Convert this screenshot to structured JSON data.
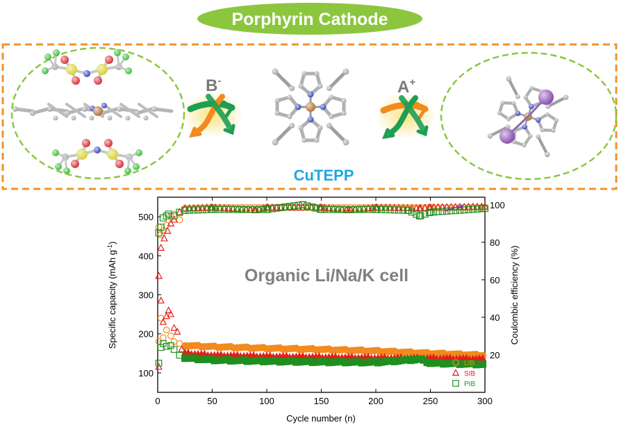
{
  "header": {
    "title": "Porphyrin Cathode",
    "title_bg": "#8cc63f"
  },
  "scheme": {
    "anion_label": "B",
    "anion_sup": "-",
    "cation_label": "A",
    "cation_sup": "+",
    "molecule_label": "CuTEPP",
    "molecule_label_color": "#1ea7e1",
    "frame_color": "#f2922b",
    "ellipse_color": "#8cc63f",
    "arrow_colors": {
      "orange": "#f28a1e",
      "green": "#1e9e55",
      "glow": "#f7e27a"
    },
    "atom_colors": {
      "carbon": "#a8a8a8",
      "nitrogen": "#3b4bbf",
      "copper": "#b3743a",
      "sulfur": "#d8d23a",
      "fluorine": "#3fbf3f",
      "oxygen": "#d8333a",
      "potassium": "#8a4fb0"
    }
  },
  "chart_data": {
    "type": "scatter",
    "annotation": "Organic Li/Na/K cell",
    "xlabel": "Cycle number (n)",
    "ylabel": "Specific capacity (mAh g",
    "ylabel_sup": "-1",
    "ylabel_end": ")",
    "y2label": "Coulombic efficiency (%)",
    "xlim": [
      0,
      300
    ],
    "ylim": [
      50,
      550
    ],
    "y2lim": [
      0,
      104
    ],
    "xticks": [
      0,
      50,
      100,
      150,
      200,
      250,
      300
    ],
    "yticks": [
      100,
      200,
      300,
      400,
      500
    ],
    "y2ticks": [
      20,
      40,
      60,
      80,
      100
    ],
    "legend_position": "bottom-right",
    "series": [
      {
        "name": "LIB",
        "marker": "circle",
        "color": "#f28a1e",
        "capacity": [
          [
            1,
            180
          ],
          [
            3,
            240
          ],
          [
            5,
            190
          ],
          [
            8,
            210
          ],
          [
            12,
            195
          ],
          [
            15,
            180
          ],
          [
            20,
            175
          ],
          [
            25,
            170
          ],
          [
            50,
            167
          ],
          [
            100,
            163
          ],
          [
            150,
            160
          ],
          [
            200,
            156
          ],
          [
            250,
            150
          ],
          [
            300,
            145
          ]
        ],
        "efficiency": [
          [
            1,
            88
          ],
          [
            3,
            84
          ],
          [
            5,
            86
          ],
          [
            8,
            89
          ],
          [
            12,
            94
          ],
          [
            15,
            95
          ],
          [
            20,
            92
          ],
          [
            25,
            98
          ],
          [
            50,
            98.5
          ],
          [
            100,
            98.5
          ],
          [
            150,
            98.5
          ],
          [
            200,
            98.5
          ],
          [
            250,
            98.5
          ],
          [
            300,
            98.5
          ]
        ]
      },
      {
        "name": "SIB",
        "marker": "triangle",
        "color": "#e0201b",
        "capacity": [
          [
            1,
            115
          ],
          [
            3,
            285
          ],
          [
            5,
            230
          ],
          [
            8,
            245
          ],
          [
            10,
            260
          ],
          [
            12,
            250
          ],
          [
            15,
            215
          ],
          [
            18,
            205
          ],
          [
            22,
            160
          ],
          [
            25,
            150
          ],
          [
            50,
            145
          ],
          [
            100,
            142
          ],
          [
            150,
            140
          ],
          [
            200,
            138
          ],
          [
            250,
            137
          ],
          [
            300,
            135
          ]
        ],
        "efficiency": [
          [
            1,
            62
          ],
          [
            3,
            77
          ],
          [
            6,
            82
          ],
          [
            9,
            86
          ],
          [
            12,
            90
          ],
          [
            15,
            92
          ],
          [
            20,
            96
          ],
          [
            25,
            98
          ],
          [
            50,
            98.5
          ],
          [
            90,
            97
          ],
          [
            100,
            98.5
          ],
          [
            150,
            98.5
          ],
          [
            175,
            97
          ],
          [
            200,
            98.5
          ],
          [
            240,
            98
          ],
          [
            250,
            98.5
          ],
          [
            300,
            99
          ]
        ]
      },
      {
        "name": "PIB",
        "marker": "square",
        "color": "#1f8f1f",
        "capacity": [
          [
            1,
            125
          ],
          [
            3,
            165
          ],
          [
            5,
            175
          ],
          [
            8,
            168
          ],
          [
            12,
            170
          ],
          [
            15,
            160
          ],
          [
            20,
            145
          ],
          [
            25,
            138
          ],
          [
            50,
            133
          ],
          [
            100,
            130
          ],
          [
            150,
            128
          ],
          [
            200,
            127
          ],
          [
            240,
            135
          ],
          [
            250,
            125
          ],
          [
            300,
            122
          ]
        ],
        "efficiency": [
          [
            1,
            85
          ],
          [
            3,
            88
          ],
          [
            5,
            93
          ],
          [
            8,
            94
          ],
          [
            10,
            95
          ],
          [
            15,
            94
          ],
          [
            20,
            96
          ],
          [
            25,
            97
          ],
          [
            50,
            97.5
          ],
          [
            100,
            97.5
          ],
          [
            133,
            100
          ],
          [
            150,
            97.5
          ],
          [
            200,
            97.5
          ],
          [
            230,
            97
          ],
          [
            240,
            94
          ],
          [
            250,
            96
          ],
          [
            300,
            98
          ]
        ]
      }
    ]
  }
}
